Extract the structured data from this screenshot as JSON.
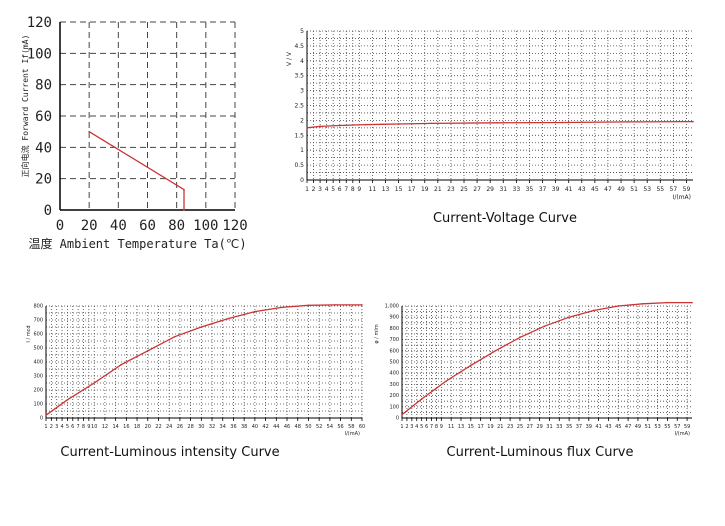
{
  "colors": {
    "curve": "#cc3333",
    "grid": "#444444",
    "axis": "#000000"
  },
  "chart_data": [
    {
      "id": "derating",
      "type": "line",
      "title": "",
      "xlabel": "温度 Ambient Temperature Ta(℃)",
      "ylabel": "正向电流 Forward Current If(mA)",
      "xlim": [
        0,
        120
      ],
      "ylim": [
        0,
        120
      ],
      "xticks": [
        "0",
        "20",
        "40",
        "60",
        "80",
        "100",
        "120"
      ],
      "yticks": [
        "0",
        "20",
        "40",
        "60",
        "80",
        "100",
        "120"
      ],
      "grid": "dashed",
      "series": [
        {
          "x": [
            20,
            85,
            85
          ],
          "y": [
            50,
            13,
            0
          ]
        }
      ]
    },
    {
      "id": "voltage",
      "type": "line",
      "title": "",
      "caption": "Current-Voltage Curve",
      "xlabel": "I/(mA)",
      "ylabel": "V / V",
      "xlim": [
        1,
        60
      ],
      "ylim": [
        0,
        5
      ],
      "xticks": [
        "1",
        "2",
        "3",
        "4",
        "5",
        "6",
        "7",
        "8",
        "9",
        "11",
        "13",
        "15",
        "17",
        "19",
        "21",
        "23",
        "25",
        "27",
        "29",
        "31",
        "33",
        "35",
        "37",
        "39",
        "41",
        "43",
        "45",
        "47",
        "49",
        "51",
        "53",
        "55",
        "57",
        "59"
      ],
      "yticks": [
        "0",
        "0.5",
        "1",
        "1.5",
        "2",
        "2.5",
        "3",
        "3.5",
        "4",
        "4.5",
        "5"
      ],
      "grid": "dotted",
      "series": [
        {
          "x": [
            1,
            3,
            6,
            10,
            15,
            20,
            30,
            40,
            50,
            60
          ],
          "y": [
            1.75,
            1.8,
            1.83,
            1.86,
            1.88,
            1.9,
            1.92,
            1.93,
            1.95,
            1.96
          ]
        }
      ]
    },
    {
      "id": "intensity",
      "type": "line",
      "title": "",
      "caption": "Current-Luminous intensity Curve",
      "xlabel": "I/(mA)",
      "ylabel": "I / mcd",
      "xlim": [
        1,
        60
      ],
      "ylim": [
        0,
        800
      ],
      "xticks": [
        "1",
        "2",
        "3",
        "4",
        "5",
        "6",
        "7",
        "8",
        "9",
        "10",
        "12",
        "14",
        "16",
        "18",
        "20",
        "22",
        "24",
        "26",
        "28",
        "30",
        "32",
        "34",
        "36",
        "38",
        "40",
        "42",
        "44",
        "46",
        "48",
        "50",
        "52",
        "54",
        "56",
        "58",
        "60"
      ],
      "yticks": [
        "0",
        "100",
        "200",
        "300",
        "400",
        "500",
        "600",
        "700",
        "800"
      ],
      "grid": "dotted",
      "series": [
        {
          "x": [
            1,
            5,
            10,
            15,
            20,
            25,
            30,
            35,
            40,
            45,
            50,
            55,
            60
          ],
          "y": [
            20,
            130,
            250,
            380,
            480,
            580,
            650,
            710,
            760,
            790,
            805,
            808,
            808
          ]
        }
      ]
    },
    {
      "id": "flux",
      "type": "line",
      "title": "",
      "caption": "Current-Luminous flux Curve",
      "xlabel": "I/(mA)",
      "ylabel": "φ / mlm",
      "xlim": [
        1,
        60
      ],
      "ylim": [
        0,
        1000
      ],
      "xticks": [
        "1",
        "2",
        "3",
        "4",
        "5",
        "6",
        "7",
        "8",
        "9",
        "11",
        "13",
        "15",
        "17",
        "19",
        "21",
        "23",
        "25",
        "27",
        "29",
        "31",
        "33",
        "35",
        "37",
        "39",
        "41",
        "43",
        "45",
        "47",
        "49",
        "51",
        "53",
        "55",
        "57",
        "59"
      ],
      "yticks": [
        "0",
        "100",
        "200",
        "300",
        "400",
        "500",
        "600",
        "700",
        "800",
        "900",
        "1,000"
      ],
      "grid": "dotted",
      "series": [
        {
          "x": [
            1,
            5,
            10,
            15,
            20,
            25,
            30,
            35,
            40,
            45,
            50,
            55,
            60
          ],
          "y": [
            30,
            170,
            330,
            470,
            600,
            720,
            820,
            900,
            960,
            1000,
            1020,
            1030,
            1030
          ]
        }
      ]
    }
  ]
}
